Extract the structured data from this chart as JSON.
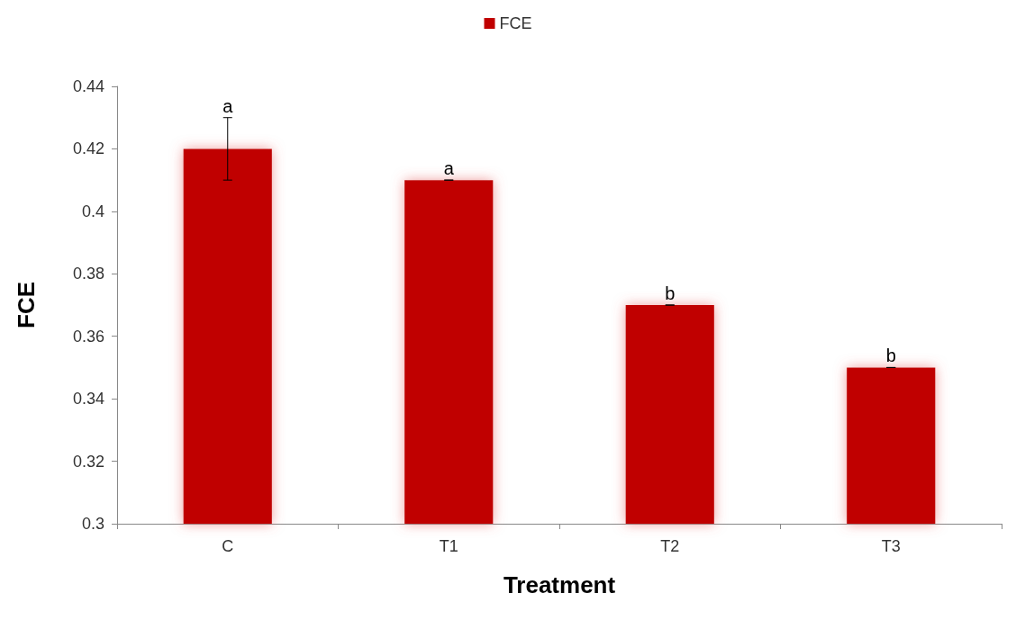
{
  "chart_data": {
    "type": "bar",
    "xlabel": "Treatment",
    "ylabel": "FCE",
    "categories": [
      "C",
      "T1",
      "T2",
      "T3"
    ],
    "series": [
      {
        "name": "FCE",
        "color": "#c00000",
        "values": [
          0.42,
          0.41,
          0.37,
          0.35
        ],
        "errors": [
          0.01,
          0,
          0,
          0
        ]
      }
    ],
    "ylim": [
      0.3,
      0.44
    ],
    "yticks": [
      0.3,
      0.32,
      0.34,
      0.36,
      0.38,
      0.4,
      0.42,
      0.44
    ],
    "grid": false,
    "legend": "top",
    "annotations": [
      {
        "text": "a",
        "x": "C",
        "y": 0.43
      },
      {
        "text": "a",
        "x": "T1",
        "y": 0.41
      },
      {
        "text": "b",
        "x": "T2",
        "y": 0.37
      },
      {
        "text": "b",
        "x": "T3",
        "y": 0.35
      }
    ]
  }
}
